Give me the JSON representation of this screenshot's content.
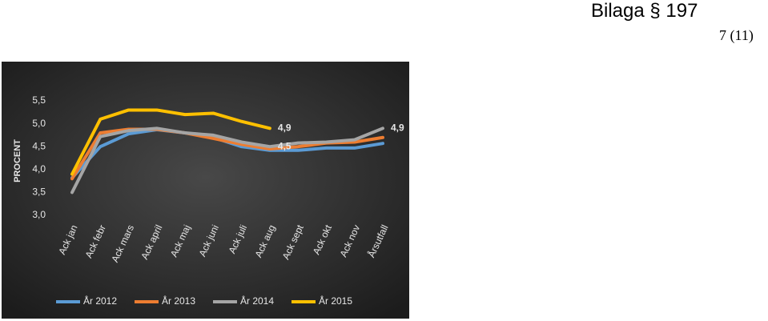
{
  "header": {
    "title": "Bilaga § 197",
    "page": "7 (11)"
  },
  "chart_data": {
    "type": "line",
    "ylabel": "PROCENT",
    "categories": [
      "Ack jan",
      "Ack febr",
      "Ack mars",
      "Ack april",
      "Ack maj",
      "Ack juni",
      "Ack juli",
      "Ack aug",
      "Ack sept",
      "Ack okt",
      "Ack nov",
      "Årsutfall"
    ],
    "ylim": [
      3.0,
      5.5
    ],
    "yticks": [
      {
        "value": 3.0,
        "label": "3,0"
      },
      {
        "value": 3.5,
        "label": "3,5"
      },
      {
        "value": 4.0,
        "label": "4,0"
      },
      {
        "value": 4.5,
        "label": "4,5"
      },
      {
        "value": 5.0,
        "label": "5,0"
      },
      {
        "value": 5.5,
        "label": "5,5"
      }
    ],
    "grid": false,
    "legend": "bottom",
    "series": [
      {
        "name": "År 2012",
        "color": "#5b9bd5",
        "values": [
          3.82,
          4.5,
          4.78,
          4.87,
          4.8,
          4.7,
          4.5,
          4.42,
          4.42,
          4.47,
          4.47,
          4.57
        ]
      },
      {
        "name": "År 2013",
        "color": "#ed7d31",
        "values": [
          3.8,
          4.8,
          4.88,
          4.88,
          4.8,
          4.68,
          4.55,
          4.45,
          4.5,
          4.58,
          4.6,
          4.7
        ]
      },
      {
        "name": "År 2014",
        "color": "#a5a5a5",
        "values": [
          3.5,
          4.72,
          4.85,
          4.9,
          4.8,
          4.75,
          4.6,
          4.5,
          4.58,
          4.6,
          4.65,
          4.9
        ],
        "value_labels": [
          null,
          null,
          null,
          null,
          null,
          null,
          null,
          "4,5",
          null,
          null,
          null,
          "4,9"
        ]
      },
      {
        "name": "År 2015",
        "color": "#ffc000",
        "values": [
          3.9,
          5.1,
          5.3,
          5.3,
          5.2,
          5.23,
          5.05,
          4.9,
          null,
          null,
          null,
          null
        ],
        "value_labels": [
          null,
          null,
          null,
          null,
          null,
          null,
          null,
          "4,9",
          null,
          null,
          null,
          null
        ]
      }
    ]
  }
}
